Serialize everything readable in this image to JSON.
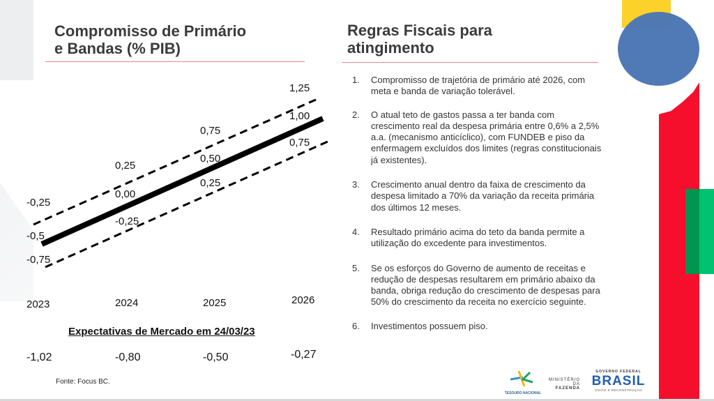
{
  "left": {
    "title_line1": "Compromisso de Primário",
    "title_line2": "e Bandas (% PIB)"
  },
  "chart_data": {
    "type": "line",
    "title": "Compromisso de Primário e Bandas (% PIB)",
    "categories": [
      "2023",
      "2024",
      "2025",
      "2026"
    ],
    "series": [
      {
        "values": [
          -0.25,
          0.25,
          0.75,
          1.25
        ],
        "labels": [
          "-0,25",
          "0,25",
          "0,75",
          "1,25"
        ],
        "style": "dashed"
      },
      {
        "values": [
          -0.5,
          0.0,
          0.5,
          1.0
        ],
        "labels": [
          "-0,5",
          "0,00",
          "0,50",
          "1,00"
        ],
        "style": "solid-thick"
      },
      {
        "values": [
          -0.75,
          -0.25,
          0.25,
          0.75
        ],
        "labels": [
          "-0,75",
          "-0,25",
          "0,25",
          "0,75"
        ],
        "style": "dashed"
      }
    ],
    "color": "#000000",
    "grid": false
  },
  "market": {
    "title": "Expectativas de Mercado em 24/03/23",
    "values": [
      "-1,02",
      "-0,80",
      "-0,50",
      "-0,27"
    ]
  },
  "source": "Fonte: Focus BC.",
  "right": {
    "title_line1": "Regras Fiscais para",
    "title_line2": "atingimento",
    "items": [
      {
        "num": "1.",
        "text": "Compromisso de trajetória de primário até 2026, com meta e banda de variação tolerável."
      },
      {
        "num": "2.",
        "text": "O atual teto de gastos passa a ter banda com crescimento real da despesa primária entre 0,6% a 2,5% a.a. (mecanismo anticíclico), com FUNDEB e piso da enfermagem excluídos dos limites (regras constitucionais já existentes)."
      },
      {
        "num": "3.",
        "text": "Crescimento anual dentro da faixa de crescimento da despesa limitado a 70% da variação da receita primária dos últimos 12 meses."
      },
      {
        "num": "4.",
        "text": "Resultado primário acima do teto da banda permite a utilização do excedente para investimentos."
      },
      {
        "num": "5.",
        "text": "Se os esforços do Governo de aumento de receitas e redução de despesas resultarem em primário abaixo da banda, obriga redução do crescimento de despesas para 50% do crescimento da receita no exercício seguinte."
      },
      {
        "num": "6.",
        "text": "Investimentos possuem piso."
      }
    ]
  },
  "logos": {
    "tesouro": "TESOURO NACIONAL",
    "ministerio_line1": "MINISTÉRIO DA",
    "ministerio_line2": "FAZENDA",
    "governo": "GOVERNO FEDERAL",
    "brasil": "BRASIL",
    "uniao": "UNIÃO E RECONSTRUÇÃO"
  },
  "colors": {
    "yellow": "#fcd12a",
    "blue": "#4a76b4",
    "red": "#f50f2d",
    "green": "#00c270",
    "title_rule": "#e8868b"
  }
}
